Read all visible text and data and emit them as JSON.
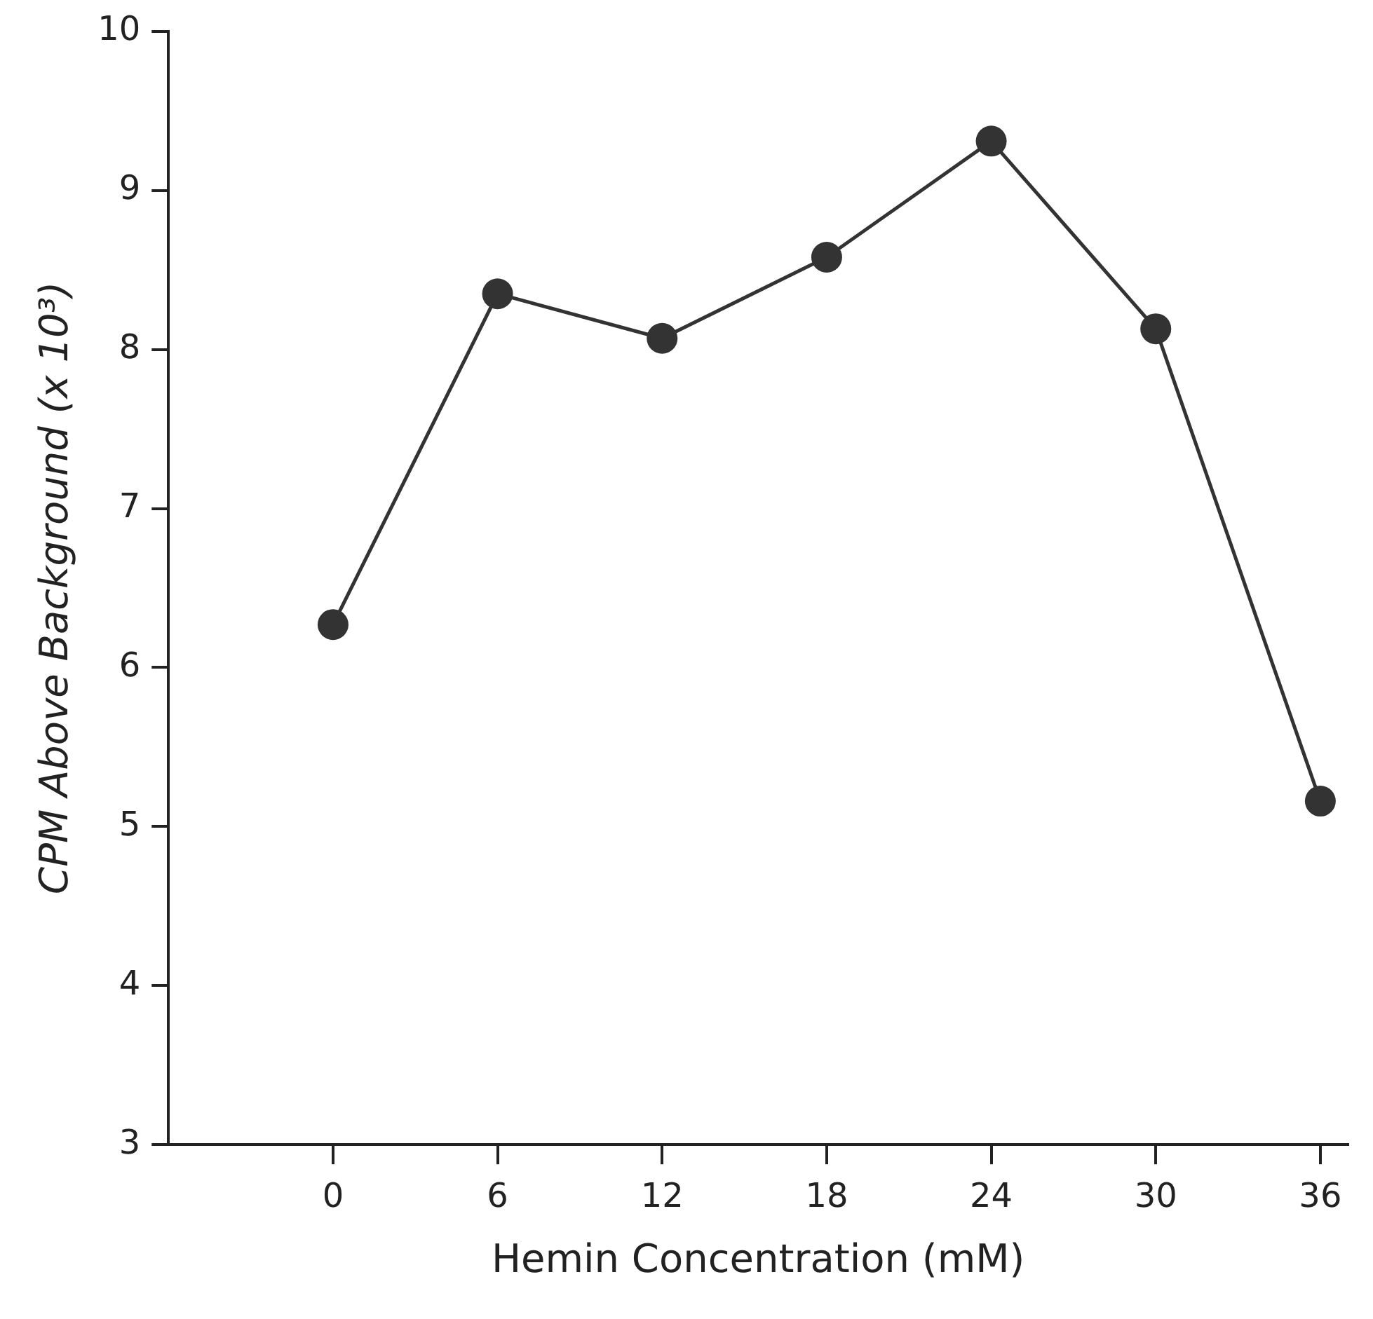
{
  "chart_data": {
    "type": "line",
    "xlabel": "Hemin Concentration (mM)",
    "ylabel": "CPM Above Background (x 10³)",
    "x": [
      0,
      6,
      12,
      18,
      24,
      30,
      36
    ],
    "series": [
      {
        "color": "#333333",
        "values": [
          6.27,
          8.35,
          8.07,
          8.58,
          9.31,
          8.13,
          5.16
        ]
      }
    ],
    "xlim": [
      -6,
      37
    ],
    "xticks": [
      0,
      6,
      12,
      18,
      24,
      30,
      36
    ],
    "ylim": [
      3,
      10
    ],
    "yticks": [
      3,
      4,
      5,
      6,
      7,
      8,
      9,
      10
    ],
    "grid": false,
    "legend": false,
    "marker": "circle",
    "line_style": "solid"
  }
}
